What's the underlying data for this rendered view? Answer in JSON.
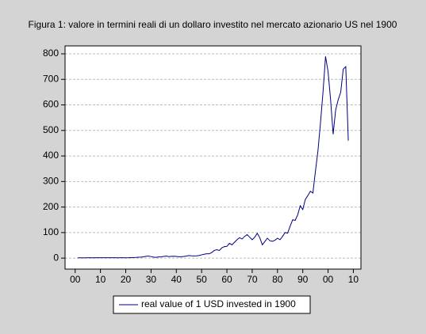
{
  "chart_data": {
    "type": "line",
    "title": "Figura  1: valore in termini reali di un dollaro investito nel mercato azionario US nel 1900",
    "x": [
      1,
      2,
      3,
      4,
      5,
      6,
      7,
      8,
      9,
      10,
      11,
      12,
      13,
      14,
      15,
      16,
      17,
      18,
      19,
      20,
      21,
      22,
      23,
      24,
      25,
      26,
      27,
      28,
      29,
      30,
      31,
      32,
      33,
      34,
      35,
      36,
      37,
      38,
      39,
      40,
      41,
      42,
      43,
      44,
      45,
      46,
      47,
      48,
      49,
      50,
      51,
      52,
      53,
      54,
      55,
      56,
      57,
      58,
      59,
      60,
      61,
      62,
      63,
      64,
      65,
      66,
      67,
      68,
      69,
      70,
      71,
      72,
      73,
      74,
      75,
      76,
      77,
      78,
      79,
      80,
      81,
      82,
      83,
      84,
      85,
      86,
      87,
      88,
      89,
      90,
      91,
      92,
      93,
      94,
      95,
      96,
      97,
      98,
      99,
      100,
      101,
      102,
      103,
      104,
      105,
      106,
      107,
      108
    ],
    "series": [
      {
        "name": "real value of 1 USD invested in  1900",
        "color": "#000080",
        "values": [
          1,
          1.1,
          1.1,
          1.2,
          1.4,
          1.4,
          1.2,
          1.5,
          1.6,
          1.5,
          1.6,
          1.6,
          1.5,
          1.4,
          1.7,
          1.6,
          1.3,
          1.4,
          1.5,
          1.3,
          1.5,
          2,
          2.2,
          2.6,
          3.3,
          3.8,
          5,
          7,
          8,
          6,
          4,
          3,
          4.5,
          5,
          6.5,
          8,
          6,
          7,
          7.5,
          6.5,
          5.5,
          5.5,
          6.5,
          8,
          10,
          9,
          8.5,
          9,
          10,
          13,
          15,
          17,
          17,
          22,
          30,
          33,
          30,
          40,
          45,
          46,
          58,
          52,
          62,
          72,
          80,
          75,
          85,
          92,
          82,
          72,
          82,
          97,
          80,
          52,
          65,
          78,
          68,
          66,
          70,
          78,
          72,
          85,
          100,
          98,
          125,
          150,
          148,
          170,
          205,
          190,
          230,
          245,
          262,
          255,
          340,
          420,
          530,
          650,
          790,
          730,
          620,
          485,
          580,
          620,
          650,
          740,
          750,
          460
        ]
      }
    ],
    "xlim": [
      -4,
      113
    ],
    "xticks": [
      {
        "value": 0,
        "label": "00"
      },
      10,
      20,
      30,
      40,
      50,
      60,
      70,
      80,
      90,
      {
        "value": 100,
        "label": "00"
      },
      {
        "value": 110,
        "label": "10"
      }
    ],
    "ylim": [
      -43,
      831
    ],
    "yticks": [
      0,
      100,
      200,
      300,
      400,
      500,
      600,
      700,
      800
    ],
    "grid": true
  }
}
